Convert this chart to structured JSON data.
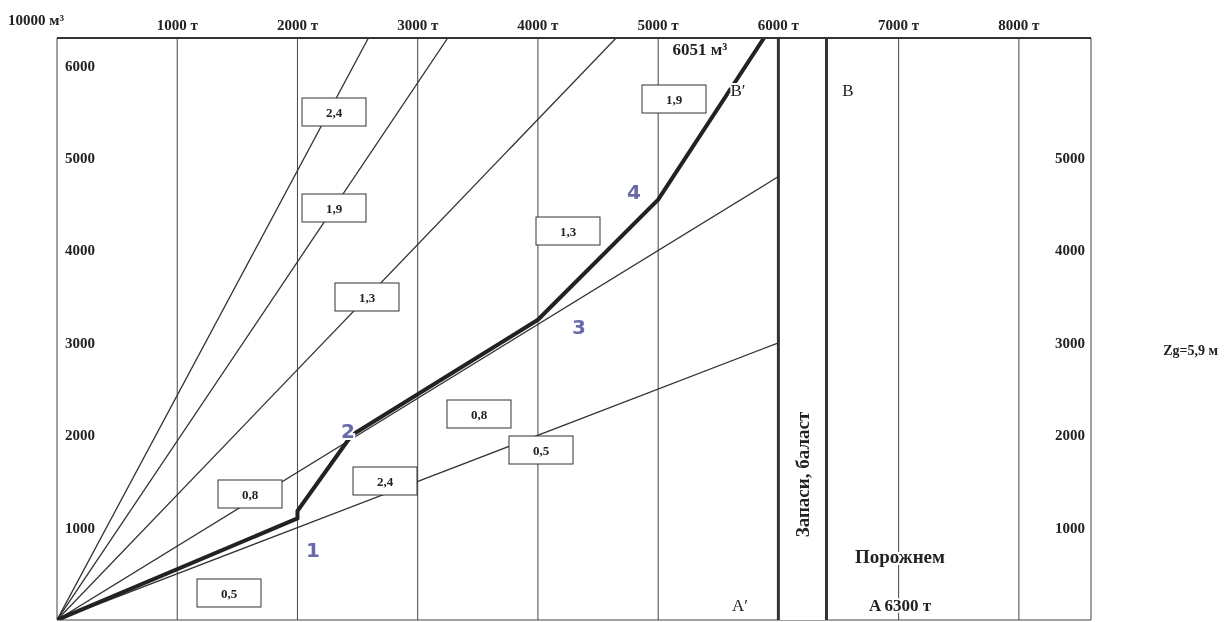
{
  "chart_data": {
    "type": "line",
    "ylabel": "10000 м³",
    "xlim": [
      0,
      8600
    ],
    "ylim": [
      0,
      6300
    ],
    "xticks": [
      {
        "value": 1000,
        "label": "1000 т"
      },
      {
        "value": 2000,
        "label": "2000 т"
      },
      {
        "value": 3000,
        "label": "3000 т"
      },
      {
        "value": 4000,
        "label": "4000 т"
      },
      {
        "value": 5000,
        "label": "5000 т"
      },
      {
        "value": 6000,
        "label": "6000 т"
      },
      {
        "value": 7000,
        "label": "7000 т"
      },
      {
        "value": 8000,
        "label": "8000 т"
      }
    ],
    "yticks": [
      1000,
      2000,
      3000,
      4000,
      5000,
      6000
    ],
    "y2lim": [
      0,
      6300
    ],
    "y2ticks": [
      1000,
      2000,
      3000,
      4000,
      5000
    ],
    "grid": true,
    "legend": false,
    "marker": "none",
    "line_style": "solid",
    "series": [
      {
        "color": "#333333",
        "x": [
          0,
          6000
        ],
        "values": [
          0,
          3000
        ]
      },
      {
        "color": "#333333",
        "x": [
          0,
          6000
        ],
        "values": [
          0,
          4800
        ]
      },
      {
        "color": "#333333",
        "x": [
          0,
          4650
        ],
        "values": [
          0,
          6300
        ]
      },
      {
        "color": "#333333",
        "x": [
          0,
          3250
        ],
        "values": [
          0,
          6300
        ]
      },
      {
        "color": "#333333",
        "x": [
          0,
          2590
        ],
        "values": [
          0,
          6300
        ]
      },
      {
        "color": "#222222",
        "x": [
          0,
          2000,
          2000,
          2450,
          4000,
          5000,
          5880
        ],
        "values": [
          0,
          1100,
          1180,
          2000,
          3250,
          4550,
          6300
        ]
      }
    ],
    "ref_lines": [
      {
        "axis": "x",
        "value": 6000,
        "color": "#333333"
      },
      {
        "axis": "x",
        "value": 6400,
        "color": "#333333"
      }
    ],
    "bands": [
      {
        "axis": "x",
        "from": 6000,
        "to": 6400,
        "label": "Запаси, баласт",
        "color": "#ffffff"
      }
    ],
    "annotations": [
      "2,4",
      "1,9",
      "1,3",
      "0,8",
      "0,5",
      "2,4",
      "0,8",
      "0,5",
      "1,3",
      "1,9",
      "1",
      "2",
      "3",
      "4",
      "6051 м³",
      "B′",
      "B",
      "A′",
      "Порожнем",
      "A   6300 т",
      "Zg=5,9 м"
    ]
  }
}
